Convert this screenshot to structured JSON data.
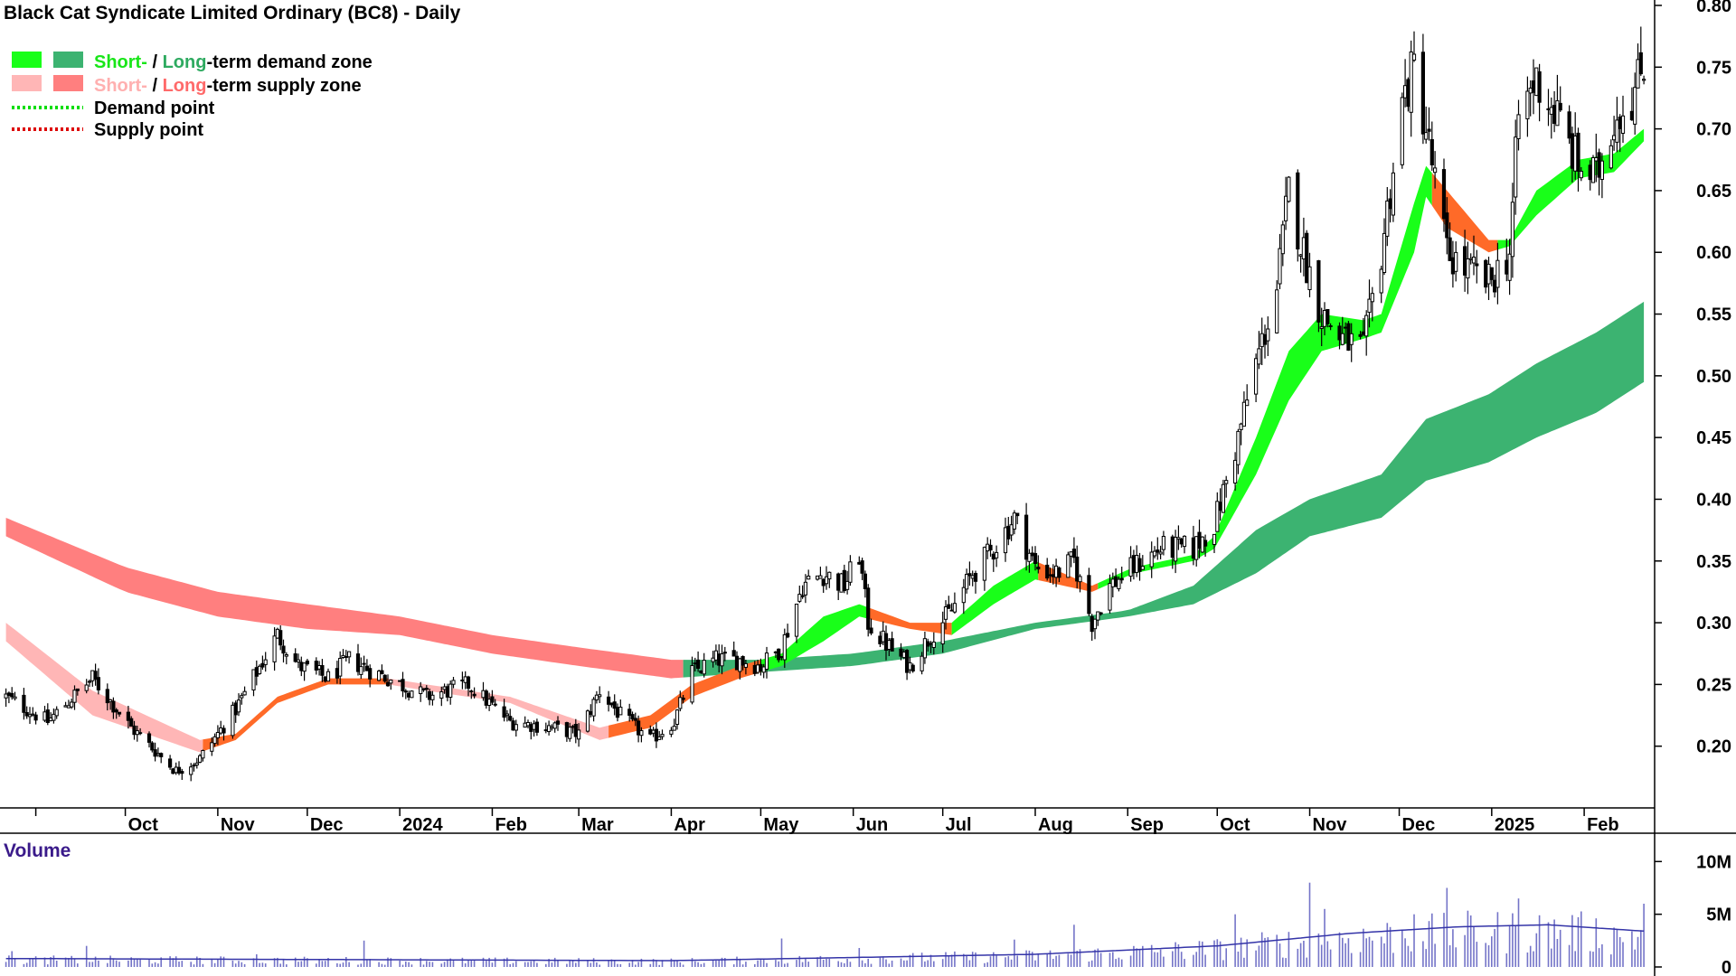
{
  "chart_data": {
    "type": "candlestick",
    "title": "Black Cat Syndicate Limited Ordinary (BC8) - Daily",
    "price_axis": {
      "min": 0.15,
      "max": 0.8,
      "ticks": [
        "0.20",
        "0.25",
        "0.30",
        "0.35",
        "0.40",
        "0.45",
        "0.50",
        "0.55",
        "0.60",
        "0.65",
        "0.70",
        "0.75",
        "0.80"
      ]
    },
    "time_axis": {
      "labels": [
        "Oct",
        "Nov",
        "Dec",
        "2024",
        "Feb",
        "Mar",
        "Apr",
        "May",
        "Jun",
        "Jul",
        "Aug",
        "Sep",
        "Oct",
        "Nov",
        "Dec",
        "2025",
        "Feb"
      ]
    },
    "legend": {
      "demand_zone": {
        "short": "Short-",
        "sep": " / ",
        "long": "Long",
        "rest": "-term demand zone"
      },
      "supply_zone": {
        "short": "Short-",
        "sep": " / ",
        "long": "Long",
        "rest": "-term supply zone"
      },
      "demand_point": "Demand point",
      "supply_point": "Supply point"
    },
    "colors": {
      "short_demand": "#19ff19",
      "long_demand": "#3cb371",
      "short_supply": "#ffb6b6",
      "long_supply": "#ff7f7f",
      "crossover": "#ff6a28",
      "demand_point": "#00dd00",
      "supply_point": "#dd0000",
      "volume": "#7474c8",
      "volume_ma": "#3434a8"
    },
    "price_keypoints": [
      [
        "2023-08-22",
        0.24
      ],
      [
        "2023-09-05",
        0.22
      ],
      [
        "2023-09-20",
        0.255
      ],
      [
        "2023-10-03",
        0.215
      ],
      [
        "2023-10-18",
        0.18
      ],
      [
        "2023-10-26",
        0.19
      ],
      [
        "2023-11-07",
        0.23
      ],
      [
        "2023-11-14",
        0.26
      ],
      [
        "2023-11-21",
        0.29
      ],
      [
        "2023-11-28",
        0.265
      ],
      [
        "2023-12-08",
        0.255
      ],
      [
        "2023-12-15",
        0.27
      ],
      [
        "2023-12-28",
        0.255
      ],
      [
        "2024-01-10",
        0.24
      ],
      [
        "2024-01-24",
        0.25
      ],
      [
        "2024-02-07",
        0.22
      ],
      [
        "2024-02-21",
        0.215
      ],
      [
        "2024-03-01",
        0.21
      ],
      [
        "2024-03-08",
        0.245
      ],
      [
        "2024-03-15",
        0.225
      ],
      [
        "2024-03-25",
        0.205
      ],
      [
        "2024-04-02",
        0.22
      ],
      [
        "2024-04-08",
        0.26
      ],
      [
        "2024-04-16",
        0.27
      ],
      [
        "2024-04-24",
        0.27
      ],
      [
        "2024-05-01",
        0.265
      ],
      [
        "2024-05-08",
        0.28
      ],
      [
        "2024-05-15",
        0.33
      ],
      [
        "2024-05-22",
        0.34
      ],
      [
        "2024-05-29",
        0.33
      ],
      [
        "2024-06-03",
        0.355
      ],
      [
        "2024-06-06",
        0.3
      ],
      [
        "2024-06-13",
        0.28
      ],
      [
        "2024-06-20",
        0.265
      ],
      [
        "2024-06-27",
        0.29
      ],
      [
        "2024-07-04",
        0.31
      ],
      [
        "2024-07-11",
        0.34
      ],
      [
        "2024-07-18",
        0.36
      ],
      [
        "2024-07-25",
        0.385
      ],
      [
        "2024-08-01",
        0.345
      ],
      [
        "2024-08-08",
        0.34
      ],
      [
        "2024-08-14",
        0.35
      ],
      [
        "2024-08-20",
        0.3
      ],
      [
        "2024-08-26",
        0.33
      ],
      [
        "2024-09-03",
        0.345
      ],
      [
        "2024-09-12",
        0.36
      ],
      [
        "2024-09-23",
        0.36
      ],
      [
        "2024-09-30",
        0.38
      ],
      [
        "2024-10-07",
        0.44
      ],
      [
        "2024-10-14",
        0.51
      ],
      [
        "2024-10-21",
        0.57
      ],
      [
        "2024-10-25",
        0.65
      ],
      [
        "2024-10-30",
        0.6
      ],
      [
        "2024-11-05",
        0.55
      ],
      [
        "2024-11-12",
        0.53
      ],
      [
        "2024-11-19",
        0.52
      ],
      [
        "2024-11-25",
        0.6
      ],
      [
        "2024-12-02",
        0.72
      ],
      [
        "2024-12-06",
        0.75
      ],
      [
        "2024-12-10",
        0.7
      ],
      [
        "2024-12-17",
        0.6
      ],
      [
        "2024-12-24",
        0.585
      ],
      [
        "2024-12-31",
        0.575
      ],
      [
        "2025-01-07",
        0.6
      ],
      [
        "2025-01-10",
        0.71
      ],
      [
        "2025-01-16",
        0.74
      ],
      [
        "2025-01-23",
        0.71
      ],
      [
        "2025-01-30",
        0.67
      ],
      [
        "2025-02-05",
        0.66
      ],
      [
        "2025-02-11",
        0.71
      ],
      [
        "2025-02-18",
        0.73
      ],
      [
        "2025-02-21",
        0.755
      ]
    ],
    "short_zone_keypoints": [
      [
        "2023-08-22",
        0.3,
        0.285
      ],
      [
        "2023-09-20",
        0.245,
        0.225
      ],
      [
        "2023-10-26",
        0.205,
        0.195
      ],
      [
        "2023-11-07",
        0.21,
        0.205
      ],
      [
        "2023-11-21",
        0.24,
        0.235
      ],
      [
        "2023-12-08",
        0.255,
        0.25
      ],
      [
        "2023-12-28",
        0.255,
        0.25
      ],
      [
        "2024-01-10",
        0.25,
        0.245
      ],
      [
        "2024-02-07",
        0.24,
        0.235
      ],
      [
        "2024-03-08",
        0.215,
        0.205
      ],
      [
        "2024-03-25",
        0.225,
        0.215
      ],
      [
        "2024-04-08",
        0.25,
        0.24
      ],
      [
        "2024-04-24",
        0.265,
        0.255
      ],
      [
        "2024-05-08",
        0.275,
        0.265
      ],
      [
        "2024-05-22",
        0.305,
        0.285
      ],
      [
        "2024-06-03",
        0.315,
        0.305
      ],
      [
        "2024-06-20",
        0.3,
        0.295
      ],
      [
        "2024-07-04",
        0.3,
        0.29
      ],
      [
        "2024-07-18",
        0.33,
        0.315
      ],
      [
        "2024-08-01",
        0.35,
        0.335
      ],
      [
        "2024-08-20",
        0.33,
        0.325
      ],
      [
        "2024-09-03",
        0.345,
        0.34
      ],
      [
        "2024-09-23",
        0.355,
        0.35
      ],
      [
        "2024-09-30",
        0.37,
        0.36
      ],
      [
        "2024-10-14",
        0.45,
        0.42
      ],
      [
        "2024-10-25",
        0.52,
        0.48
      ],
      [
        "2024-11-05",
        0.55,
        0.52
      ],
      [
        "2024-11-19",
        0.545,
        0.53
      ],
      [
        "2024-11-25",
        0.55,
        0.535
      ],
      [
        "2024-12-06",
        0.64,
        0.6
      ],
      [
        "2024-12-10",
        0.67,
        0.645
      ],
      [
        "2024-12-17",
        0.65,
        0.62
      ],
      [
        "2024-12-31",
        0.61,
        0.6
      ],
      [
        "2025-01-07",
        0.61,
        0.605
      ],
      [
        "2025-01-16",
        0.65,
        0.63
      ],
      [
        "2025-01-30",
        0.675,
        0.66
      ],
      [
        "2025-02-11",
        0.68,
        0.665
      ],
      [
        "2025-02-21",
        0.7,
        0.69
      ]
    ],
    "long_zone_keypoints": [
      [
        "2023-08-22",
        0.385,
        0.37
      ],
      [
        "2023-10-01",
        0.345,
        0.325
      ],
      [
        "2023-11-01",
        0.325,
        0.305
      ],
      [
        "2023-12-01",
        0.315,
        0.295
      ],
      [
        "2024-01-01",
        0.305,
        0.29
      ],
      [
        "2024-02-01",
        0.29,
        0.275
      ],
      [
        "2024-03-01",
        0.28,
        0.265
      ],
      [
        "2024-04-01",
        0.27,
        0.255
      ],
      [
        "2024-05-01",
        0.27,
        0.26
      ],
      [
        "2024-06-01",
        0.275,
        0.265
      ],
      [
        "2024-07-01",
        0.285,
        0.275
      ],
      [
        "2024-08-01",
        0.3,
        0.295
      ],
      [
        "2024-09-01",
        0.31,
        0.305
      ],
      [
        "2024-09-23",
        0.33,
        0.315
      ],
      [
        "2024-10-14",
        0.375,
        0.34
      ],
      [
        "2024-11-01",
        0.4,
        0.37
      ],
      [
        "2024-11-25",
        0.42,
        0.385
      ],
      [
        "2024-12-10",
        0.465,
        0.415
      ],
      [
        "2024-12-31",
        0.485,
        0.43
      ],
      [
        "2025-01-16",
        0.51,
        0.45
      ],
      [
        "2025-02-05",
        0.535,
        0.47
      ],
      [
        "2025-02-21",
        0.56,
        0.495
      ]
    ],
    "volume_axis": {
      "max": 12000000,
      "ticks": [
        "0",
        "5M",
        "10M"
      ]
    },
    "volume_label": "Volume",
    "volume_spikes": [
      [
        "2023-08-24",
        1.5
      ],
      [
        "2023-09-18",
        2.0
      ],
      [
        "2023-11-14",
        1.2
      ],
      [
        "2023-12-20",
        2.5
      ],
      [
        "2024-05-08",
        2.7
      ],
      [
        "2024-06-03",
        1.8
      ],
      [
        "2024-07-25",
        2.6
      ],
      [
        "2024-08-14",
        4.0
      ],
      [
        "2024-10-07",
        5.0
      ],
      [
        "2024-11-01",
        8.0
      ],
      [
        "2024-11-06",
        5.5
      ],
      [
        "2024-12-06",
        5.0
      ],
      [
        "2024-12-17",
        7.5
      ],
      [
        "2025-01-10",
        6.5
      ],
      [
        "2025-02-21",
        6.0
      ]
    ],
    "volume_ma_keypoints": [
      [
        "2023-08-22",
        0.8
      ],
      [
        "2024-04-01",
        0.6
      ],
      [
        "2024-08-01",
        1.2
      ],
      [
        "2024-10-01",
        2.0
      ],
      [
        "2024-11-15",
        3.2
      ],
      [
        "2024-12-20",
        3.8
      ],
      [
        "2025-01-20",
        4.0
      ],
      [
        "2025-02-21",
        3.4
      ]
    ]
  }
}
